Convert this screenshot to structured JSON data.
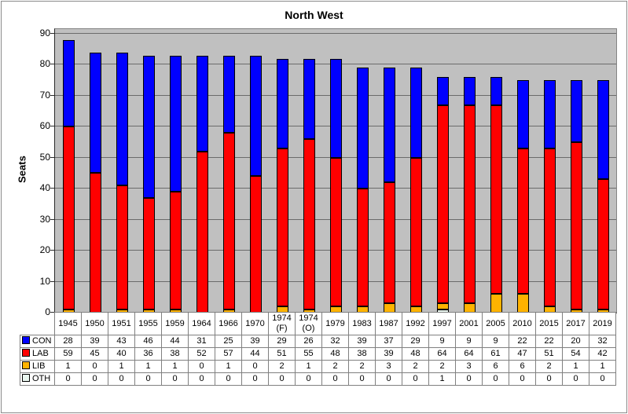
{
  "title": "North West",
  "y_axis": {
    "label": "Seats",
    "ticks": [
      0,
      10,
      20,
      30,
      40,
      50,
      60,
      70,
      80,
      90
    ],
    "max": 90
  },
  "chart_data": {
    "type": "bar",
    "stacked": true,
    "title": "North West",
    "ylabel": "Seats",
    "xlabel": "",
    "ylim": [
      0,
      90
    ],
    "ytick_step": 10,
    "grid": true,
    "plot_background": "#C0C0C0",
    "legend_position": "data-table-left",
    "categories": [
      "1945",
      "1950",
      "1951",
      "1955",
      "1959",
      "1964",
      "1966",
      "1970",
      "1974 (F)",
      "1974 (O)",
      "1979",
      "1983",
      "1987",
      "1992",
      "1997",
      "2001",
      "2005",
      "2010",
      "2015",
      "2017",
      "2019"
    ],
    "series": [
      {
        "name": "CON",
        "color": "#0000FF",
        "values": [
          28,
          39,
          43,
          46,
          44,
          31,
          25,
          39,
          29,
          26,
          32,
          39,
          37,
          29,
          9,
          9,
          9,
          22,
          22,
          20,
          32
        ]
      },
      {
        "name": "LAB",
        "color": "#FF0000",
        "values": [
          59,
          45,
          40,
          36,
          38,
          52,
          57,
          44,
          51,
          55,
          48,
          38,
          39,
          48,
          64,
          64,
          61,
          47,
          51,
          54,
          42
        ]
      },
      {
        "name": "LIB",
        "color": "#FFB300",
        "values": [
          1,
          0,
          1,
          1,
          1,
          0,
          1,
          0,
          2,
          1,
          2,
          2,
          3,
          2,
          2,
          3,
          6,
          6,
          2,
          1,
          1
        ]
      },
      {
        "name": "OTH",
        "color": "#E9F6EF",
        "values": [
          0,
          0,
          0,
          0,
          0,
          0,
          0,
          0,
          0,
          0,
          0,
          0,
          0,
          0,
          1,
          0,
          0,
          0,
          0,
          0,
          0
        ]
      }
    ],
    "stack_order_bottom_to_top": [
      "OTH",
      "LIB",
      "LAB",
      "CON"
    ]
  }
}
